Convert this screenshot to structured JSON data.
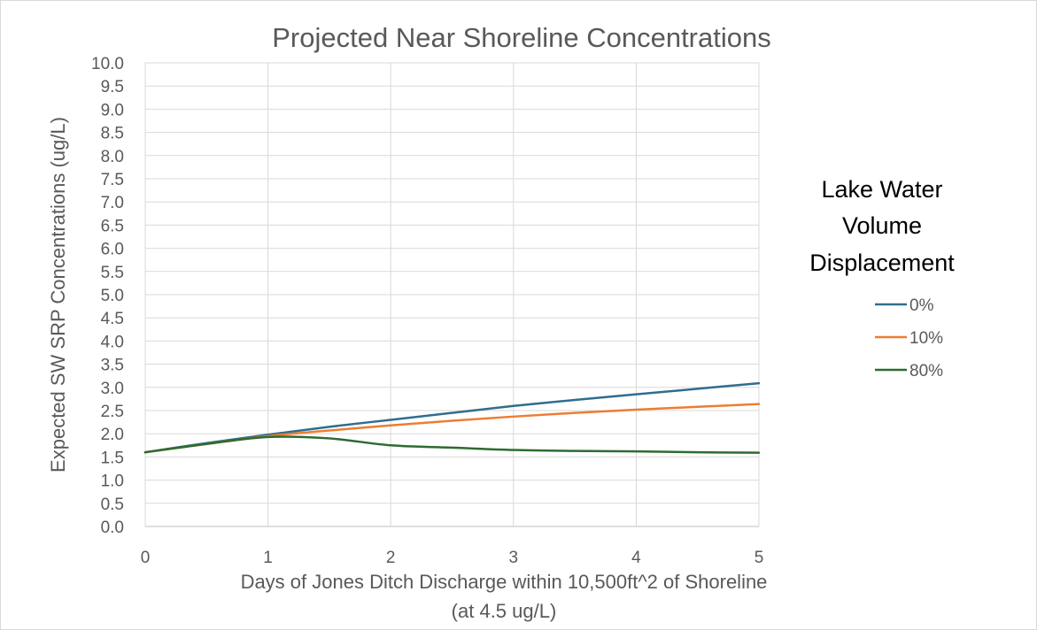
{
  "chart_data": {
    "type": "line",
    "title": "Projected Near Shoreline Concentrations",
    "xlabel_lines": [
      "Days of Jones Ditch Discharge within 10,500ft^2 of Shoreline",
      "(at 4.5 ug/L)"
    ],
    "ylabel": "Expected SW SRP Concentrations (ug/L)",
    "xlim": [
      0,
      5
    ],
    "ylim": [
      0,
      10
    ],
    "x_ticks": [
      "0",
      "1",
      "2",
      "3",
      "4",
      "5"
    ],
    "y_ticks": [
      "0.0",
      "0.5",
      "1.0",
      "1.5",
      "2.0",
      "2.5",
      "3.0",
      "3.5",
      "4.0",
      "4.5",
      "5.0",
      "5.5",
      "6.0",
      "6.5",
      "7.0",
      "7.5",
      "8.0",
      "8.5",
      "9.0",
      "9.5",
      "10.0"
    ],
    "grid": true,
    "legend_position": "right",
    "legend_title_lines": [
      "Lake Water",
      "Volume",
      "Displacement"
    ],
    "x": [
      0,
      0.5,
      1,
      1.5,
      2,
      2.5,
      3,
      3.5,
      4,
      4.5,
      5
    ],
    "series": [
      {
        "name": "0%",
        "color": "#2f6d8f",
        "values": [
          1.6,
          1.8,
          1.98,
          2.15,
          2.3,
          2.45,
          2.6,
          2.73,
          2.85,
          2.97,
          3.09
        ]
      },
      {
        "name": "10%",
        "color": "#ed7d31",
        "values": [
          1.6,
          1.78,
          1.95,
          2.07,
          2.18,
          2.28,
          2.37,
          2.45,
          2.52,
          2.58,
          2.64
        ]
      },
      {
        "name": "80%",
        "color": "#2e6b30",
        "values": [
          1.6,
          1.78,
          1.93,
          1.9,
          1.75,
          1.7,
          1.65,
          1.63,
          1.62,
          1.6,
          1.59
        ]
      }
    ]
  }
}
